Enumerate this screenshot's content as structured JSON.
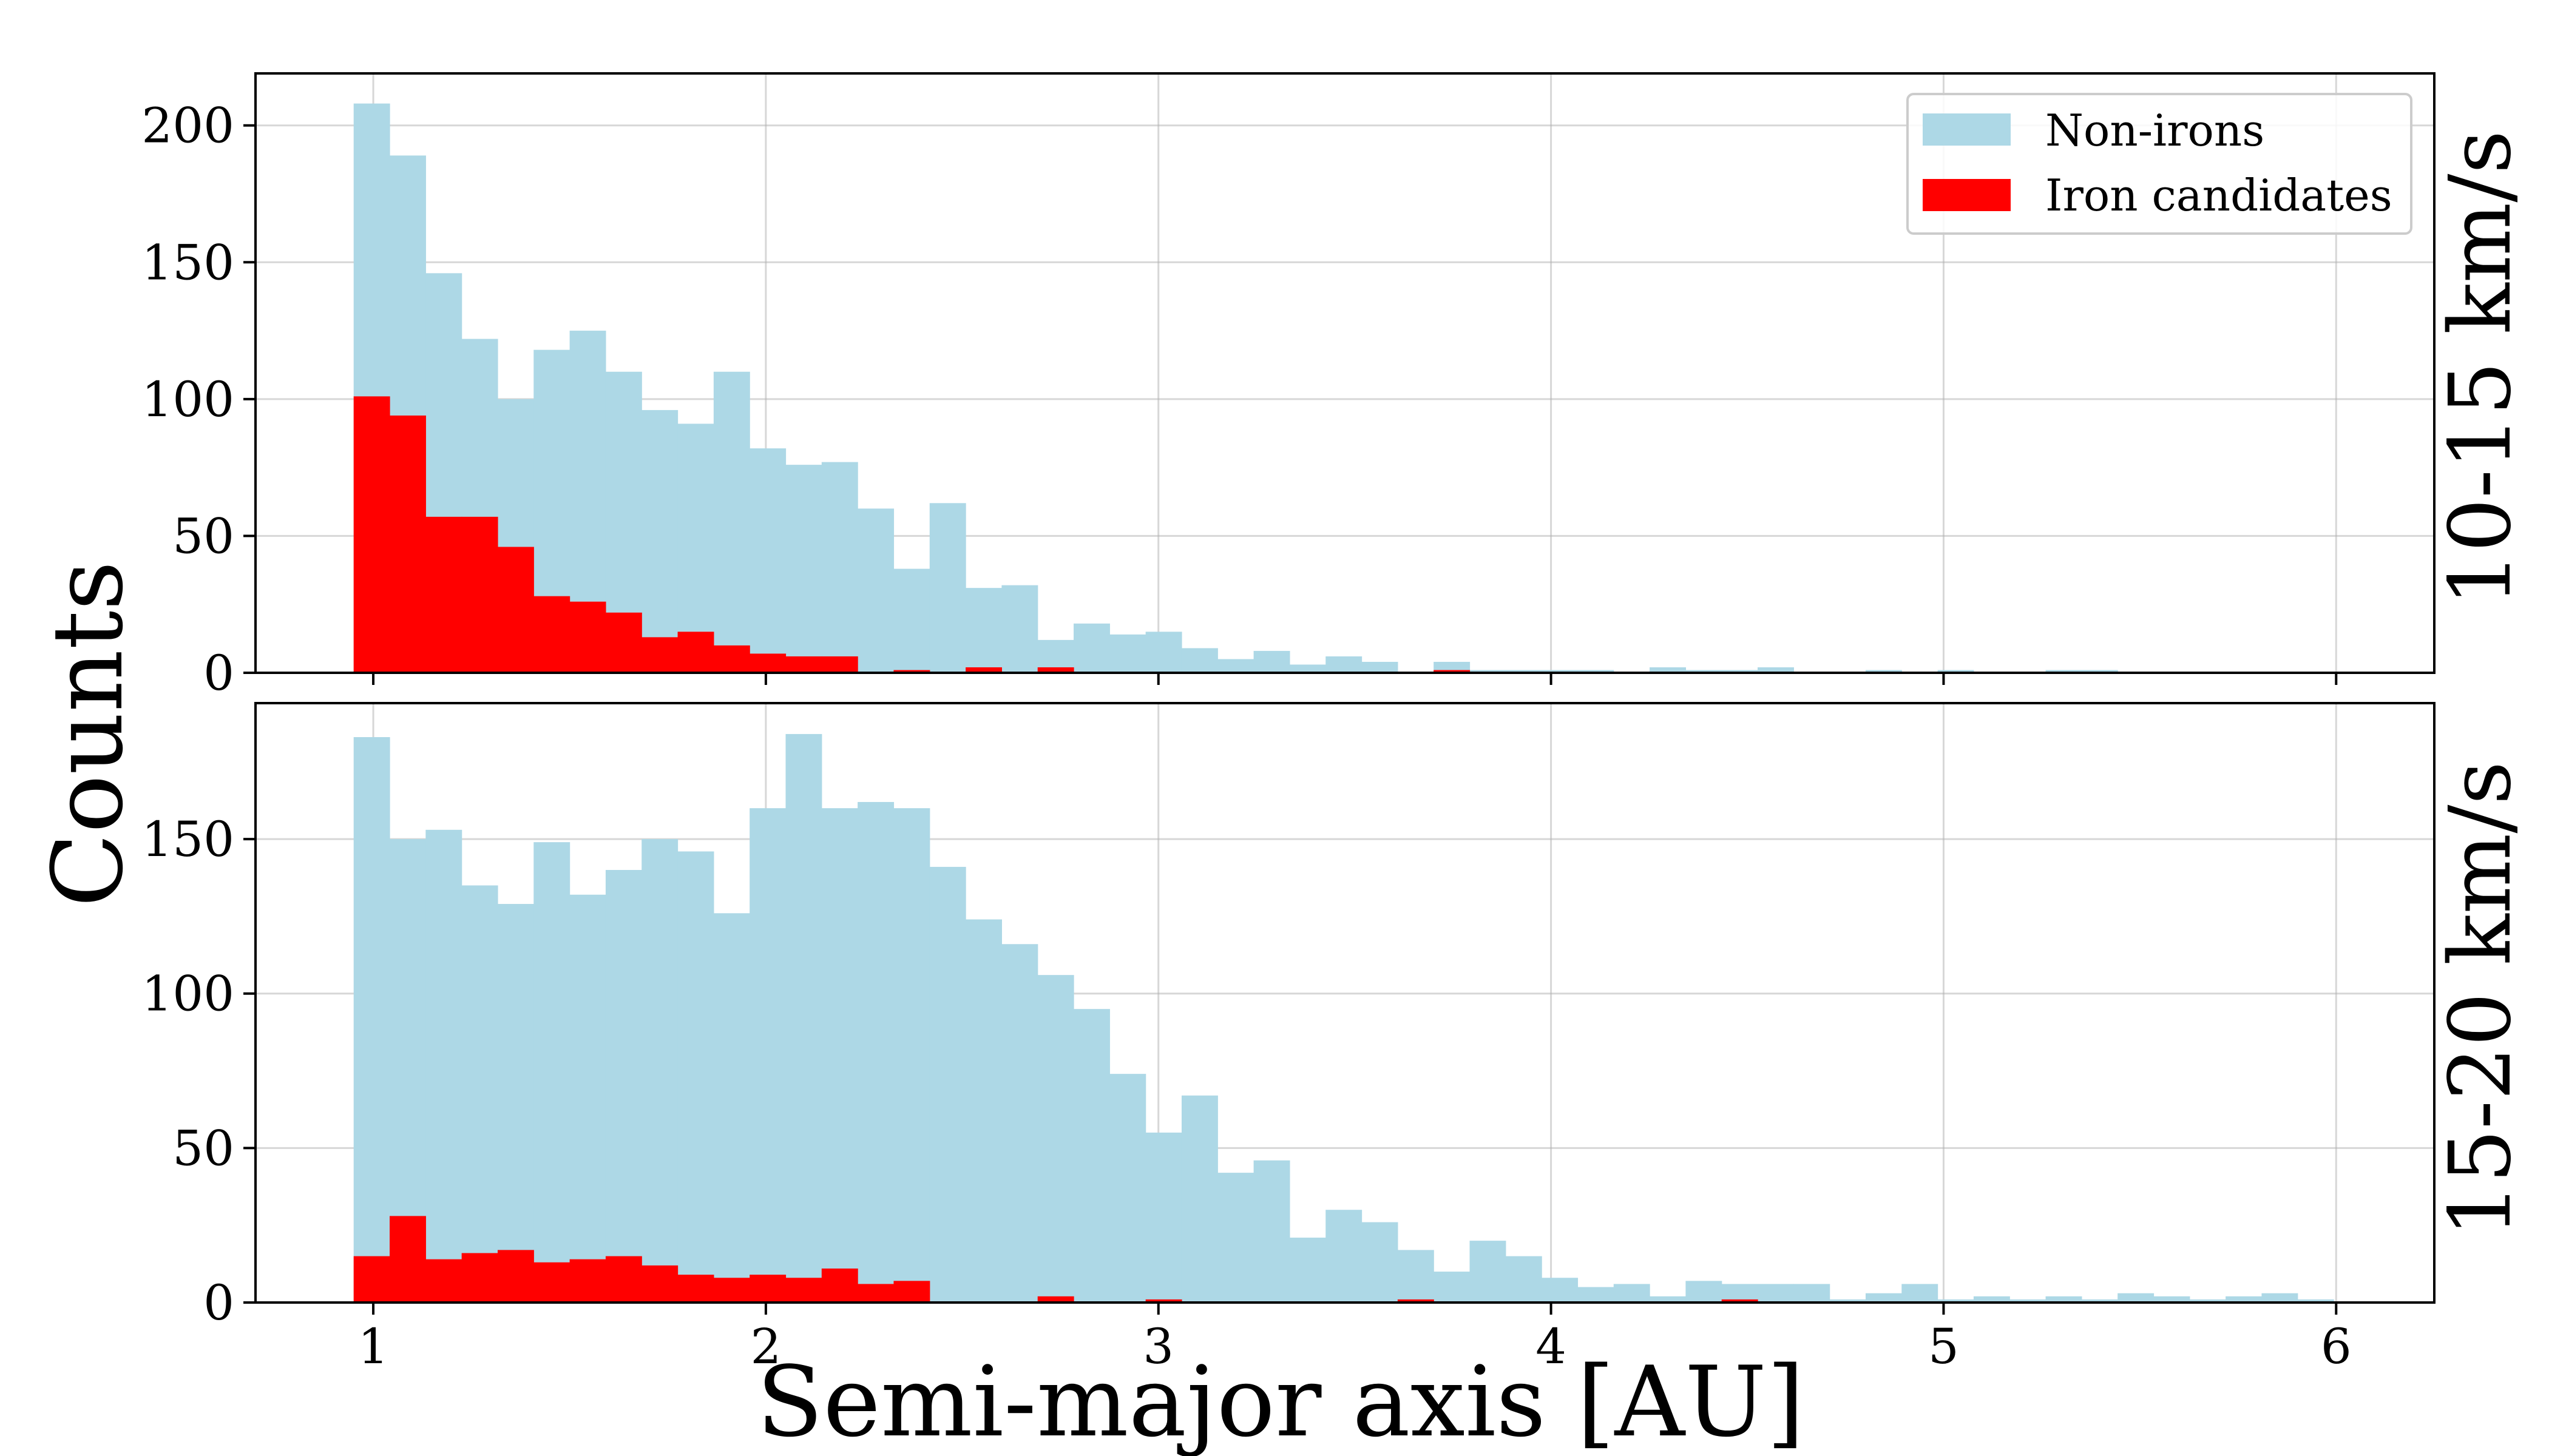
{
  "chart_data": {
    "type": "bar",
    "xlabel": "Semi-major axis [AU]",
    "ylabel": "Counts",
    "grid": true,
    "legend_location": "top-right",
    "legend": [
      {
        "label": "Non-irons",
        "color": "#add8e6"
      },
      {
        "label": "Iron candidates",
        "color": "#ff0000"
      }
    ],
    "bins": {
      "start": 0.95,
      "width": 0.0917,
      "count": 55
    },
    "xlim": [
      0.7,
      6.25
    ],
    "xticks": [
      1,
      2,
      3,
      4,
      5,
      6
    ],
    "panels": [
      {
        "label": "10-15 km/s",
        "ylim": [
          0,
          219
        ],
        "yticks": [
          0,
          50,
          100,
          150,
          200
        ],
        "series": [
          {
            "name": "Non-irons",
            "color": "#add8e6",
            "values": [
              208,
              189,
              146,
              122,
              100,
              118,
              125,
              110,
              96,
              91,
              110,
              82,
              76,
              77,
              60,
              38,
              62,
              31,
              32,
              12,
              18,
              14,
              15,
              9,
              5,
              8,
              3,
              6,
              4,
              0,
              4,
              1,
              1,
              1,
              1,
              0,
              2,
              1,
              1,
              2,
              0,
              0,
              1,
              0,
              1,
              0,
              0,
              1,
              1,
              0,
              0,
              0,
              0,
              0,
              0
            ]
          },
          {
            "name": "Iron candidates",
            "color": "#ff0000",
            "values": [
              101,
              94,
              57,
              57,
              46,
              28,
              26,
              22,
              13,
              15,
              10,
              7,
              6,
              6,
              0,
              1,
              0,
              2,
              0,
              2,
              0,
              0,
              0,
              0,
              0,
              0,
              0,
              0,
              0,
              0,
              1,
              0,
              0,
              0,
              0,
              0,
              0,
              0,
              0,
              0,
              0,
              0,
              0,
              0,
              0,
              0,
              0,
              0,
              0,
              0,
              0,
              0,
              0,
              0,
              0
            ]
          }
        ]
      },
      {
        "label": "15-20 km/s",
        "ylim": [
          0,
          194
        ],
        "yticks": [
          0,
          50,
          100,
          150
        ],
        "series": [
          {
            "name": "Non-irons",
            "color": "#add8e6",
            "values": [
              183,
              150,
              153,
              135,
              129,
              149,
              132,
              140,
              150,
              146,
              126,
              160,
              184,
              160,
              162,
              160,
              141,
              124,
              116,
              106,
              95,
              74,
              55,
              67,
              42,
              46,
              21,
              30,
              26,
              17,
              10,
              20,
              15,
              8,
              5,
              6,
              2,
              7,
              6,
              6,
              6,
              1,
              3,
              6,
              1,
              2,
              1,
              2,
              1,
              3,
              2,
              1,
              2,
              3,
              1
            ]
          },
          {
            "name": "Iron candidates",
            "color": "#ff0000",
            "values": [
              15,
              28,
              14,
              16,
              17,
              13,
              14,
              15,
              12,
              9,
              8,
              9,
              8,
              11,
              6,
              7,
              0,
              0,
              0,
              2,
              0,
              0,
              1,
              0,
              0,
              0,
              0,
              0,
              0,
              1,
              0,
              0,
              0,
              0,
              0,
              0,
              0,
              0,
              1,
              0,
              0,
              0,
              0,
              0,
              0,
              0,
              0,
              0,
              0,
              0,
              0,
              0,
              0,
              0,
              0
            ]
          }
        ]
      }
    ]
  }
}
